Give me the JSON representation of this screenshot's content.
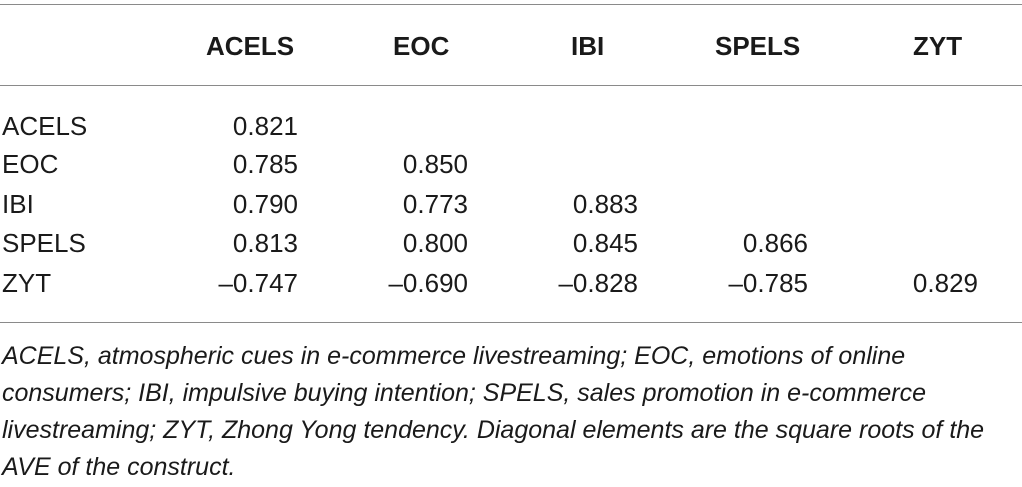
{
  "table": {
    "columns": [
      "",
      "ACELS",
      "EOC",
      "IBI",
      "SPELS",
      "ZYT"
    ],
    "rows": [
      {
        "label": "ACELS",
        "values": [
          "0.821",
          "",
          "",
          "",
          ""
        ]
      },
      {
        "label": "EOC",
        "values": [
          "0.785",
          "0.850",
          "",
          "",
          ""
        ]
      },
      {
        "label": "IBI",
        "values": [
          "0.790",
          "0.773",
          "0.883",
          "",
          ""
        ]
      },
      {
        "label": "SPELS",
        "values": [
          "0.813",
          "0.800",
          "0.845",
          "0.866",
          ""
        ]
      },
      {
        "label": "ZYT",
        "values": [
          "–0.747",
          "–0.690",
          "–0.828",
          "–0.785",
          "0.829"
        ]
      }
    ]
  },
  "footnote": "ACELS, atmospheric cues in e-commerce livestreaming; EOC, emotions of online consumers; IBI, impulsive buying intention; SPELS, sales promotion in e-commerce livestreaming; ZYT, Zhong Yong tendency. Diagonal elements are the square roots of the AVE of the construct."
}
